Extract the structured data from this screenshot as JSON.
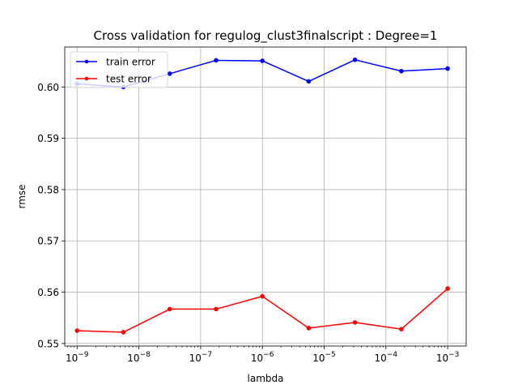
{
  "chart_data": {
    "type": "line",
    "title": "Cross validation for regulog_clust3finalscript : Degree=1",
    "xlabel": "lambda",
    "ylabel": "rmse",
    "xscale": "log",
    "xlim_log10": [
      -9.2,
      -2.7
    ],
    "ylim": [
      0.5495,
      0.6078
    ],
    "grid": true,
    "legend_position": "upper-left",
    "x": [
      1e-09,
      5.62e-09,
      3.16e-08,
      1.78e-07,
      1e-06,
      5.62e-06,
      3.16e-05,
      0.000178,
      0.001
    ],
    "x_ticks": [
      {
        "exp": -9,
        "label": "−9"
      },
      {
        "exp": -8,
        "label": "−8"
      },
      {
        "exp": -7,
        "label": "−7"
      },
      {
        "exp": -6,
        "label": "−6"
      },
      {
        "exp": -5,
        "label": "−5"
      },
      {
        "exp": -4,
        "label": "−4"
      },
      {
        "exp": -3,
        "label": "−3"
      }
    ],
    "y_ticks": [
      {
        "value": 0.55,
        "label": "0.55"
      },
      {
        "value": 0.56,
        "label": "0.56"
      },
      {
        "value": 0.57,
        "label": "0.57"
      },
      {
        "value": 0.58,
        "label": "0.58"
      },
      {
        "value": 0.59,
        "label": "0.59"
      },
      {
        "value": 0.6,
        "label": "0.60"
      }
    ],
    "series": [
      {
        "name": "train error",
        "color": "#0000ff",
        "values": [
          0.6006,
          0.6,
          0.6026,
          0.6052,
          0.6051,
          0.6011,
          0.6053,
          0.6031,
          0.6036
        ]
      },
      {
        "name": "test error",
        "color": "#ff0000",
        "values": [
          0.5525,
          0.5522,
          0.5567,
          0.5567,
          0.5592,
          0.553,
          0.5541,
          0.5528,
          0.5607
        ]
      }
    ]
  }
}
